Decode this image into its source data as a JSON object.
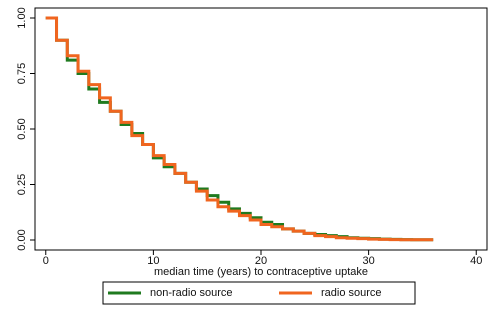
{
  "chart_data": {
    "type": "line",
    "step": "post",
    "xlabel": "median time (years) to contraceptive uptake",
    "x": [
      0,
      1,
      2,
      3,
      4,
      5,
      6,
      7,
      8,
      9,
      10,
      11,
      12,
      13,
      14,
      15,
      16,
      17,
      18,
      19,
      20,
      21,
      22,
      23,
      24,
      25,
      26,
      27,
      28,
      29,
      30,
      31,
      32,
      33,
      34,
      35,
      36
    ],
    "series": [
      {
        "name": "non-radio source",
        "color": "#1f7a1f",
        "values": [
          1,
          0.9,
          0.81,
          0.75,
          0.68,
          0.62,
          0.58,
          0.52,
          0.48,
          0.43,
          0.37,
          0.33,
          0.3,
          0.26,
          0.23,
          0.2,
          0.17,
          0.14,
          0.12,
          0.1,
          0.08,
          0.07,
          0.05,
          0.04,
          0.03,
          0.025,
          0.02,
          0.015,
          0.01,
          0.008,
          0.006,
          0.004,
          0.003,
          0.002,
          0.001,
          0.001,
          0.001
        ]
      },
      {
        "name": "radio source",
        "color": "#f0651f",
        "values": [
          1,
          0.9,
          0.83,
          0.76,
          0.7,
          0.64,
          0.58,
          0.53,
          0.47,
          0.43,
          0.38,
          0.34,
          0.3,
          0.26,
          0.22,
          0.18,
          0.15,
          0.13,
          0.11,
          0.09,
          0.07,
          0.06,
          0.05,
          0.04,
          0.03,
          0.02,
          0.015,
          0.01,
          0.008,
          0.006,
          0.004,
          0.003,
          0.002,
          0.001,
          0.001,
          0.001,
          0.001
        ]
      }
    ],
    "xlim": [
      -1,
      41
    ],
    "ylim": [
      -0.045,
      1.045
    ],
    "xticks": [
      0,
      10,
      20,
      30,
      40
    ],
    "yticks": [
      {
        "value": 0,
        "label": "0.00"
      },
      {
        "value": 0.25,
        "label": "0.25"
      },
      {
        "value": 0.5,
        "label": "0.50"
      },
      {
        "value": 0.75,
        "label": "0.75"
      },
      {
        "value": 1,
        "label": "1.00"
      }
    ],
    "grid": false,
    "legend": "bottom"
  }
}
